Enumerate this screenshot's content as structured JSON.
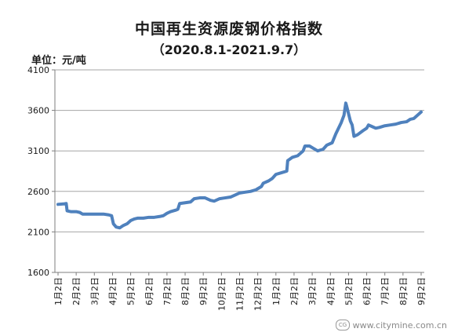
{
  "chart_data": {
    "type": "line",
    "title": "中国再生资源废钢价格指数",
    "subtitle": "（2020.8.1-2021.9.7）",
    "unit_label": "单位：元/吨",
    "ylim": [
      1600,
      4100
    ],
    "y_ticks": [
      1600,
      2100,
      2600,
      3100,
      3600,
      4100
    ],
    "grid": true,
    "legend": "none",
    "x_tick_labels": [
      "1月2日",
      "2月2日",
      "3月2日",
      "4月2日",
      "5月2日",
      "6月2日",
      "7月2日",
      "8月2日",
      "9月2日",
      "10月2日",
      "11月2日",
      "12月2日",
      "1月2日",
      "2月2日",
      "3月2日",
      "4月2日",
      "5月2日",
      "6月2日",
      "7月2日",
      "8月2日",
      "9月2日"
    ],
    "series": [
      {
        "color": "#4f81bd",
        "points": [
          [
            0.0,
            2440
          ],
          [
            0.3,
            2445
          ],
          [
            0.45,
            2450
          ],
          [
            0.5,
            2360
          ],
          [
            0.7,
            2350
          ],
          [
            1.0,
            2350
          ],
          [
            1.2,
            2340
          ],
          [
            1.35,
            2320
          ],
          [
            1.6,
            2320
          ],
          [
            2.0,
            2320
          ],
          [
            2.5,
            2320
          ],
          [
            2.8,
            2310
          ],
          [
            2.95,
            2300
          ],
          [
            3.05,
            2200
          ],
          [
            3.2,
            2160
          ],
          [
            3.4,
            2150
          ],
          [
            3.6,
            2180
          ],
          [
            3.8,
            2200
          ],
          [
            4.0,
            2240
          ],
          [
            4.2,
            2260
          ],
          [
            4.4,
            2270
          ],
          [
            4.7,
            2270
          ],
          [
            5.0,
            2280
          ],
          [
            5.3,
            2280
          ],
          [
            5.6,
            2290
          ],
          [
            5.8,
            2300
          ],
          [
            6.0,
            2330
          ],
          [
            6.2,
            2350
          ],
          [
            6.5,
            2370
          ],
          [
            6.6,
            2380
          ],
          [
            6.7,
            2450
          ],
          [
            7.0,
            2460
          ],
          [
            7.3,
            2470
          ],
          [
            7.5,
            2510
          ],
          [
            7.8,
            2520
          ],
          [
            8.1,
            2520
          ],
          [
            8.4,
            2490
          ],
          [
            8.6,
            2480
          ],
          [
            8.9,
            2510
          ],
          [
            9.2,
            2520
          ],
          [
            9.5,
            2530
          ],
          [
            9.8,
            2560
          ],
          [
            10.0,
            2580
          ],
          [
            10.3,
            2590
          ],
          [
            10.6,
            2600
          ],
          [
            10.9,
            2620
          ],
          [
            11.2,
            2660
          ],
          [
            11.3,
            2700
          ],
          [
            11.6,
            2730
          ],
          [
            11.8,
            2760
          ],
          [
            12.0,
            2810
          ],
          [
            12.3,
            2830
          ],
          [
            12.6,
            2850
          ],
          [
            12.65,
            2980
          ],
          [
            12.9,
            3020
          ],
          [
            13.2,
            3040
          ],
          [
            13.5,
            3100
          ],
          [
            13.6,
            3160
          ],
          [
            13.85,
            3160
          ],
          [
            14.0,
            3140
          ],
          [
            14.3,
            3100
          ],
          [
            14.6,
            3120
          ],
          [
            14.8,
            3170
          ],
          [
            15.1,
            3200
          ],
          [
            15.3,
            3310
          ],
          [
            15.6,
            3450
          ],
          [
            15.75,
            3540
          ],
          [
            15.85,
            3690
          ],
          [
            15.9,
            3650
          ],
          [
            16.0,
            3560
          ],
          [
            16.1,
            3470
          ],
          [
            16.2,
            3420
          ],
          [
            16.3,
            3280
          ],
          [
            16.5,
            3300
          ],
          [
            16.8,
            3350
          ],
          [
            17.0,
            3380
          ],
          [
            17.1,
            3420
          ],
          [
            17.3,
            3400
          ],
          [
            17.5,
            3380
          ],
          [
            17.7,
            3390
          ],
          [
            18.0,
            3410
          ],
          [
            18.3,
            3420
          ],
          [
            18.6,
            3430
          ],
          [
            18.9,
            3450
          ],
          [
            19.2,
            3460
          ],
          [
            19.4,
            3490
          ],
          [
            19.6,
            3500
          ],
          [
            19.8,
            3540
          ],
          [
            20.0,
            3580
          ]
        ]
      }
    ]
  },
  "watermark": {
    "text": "www.citymine.com.cn",
    "icon_label": "CG",
    "icon_name": "citymine-logo-icon"
  }
}
